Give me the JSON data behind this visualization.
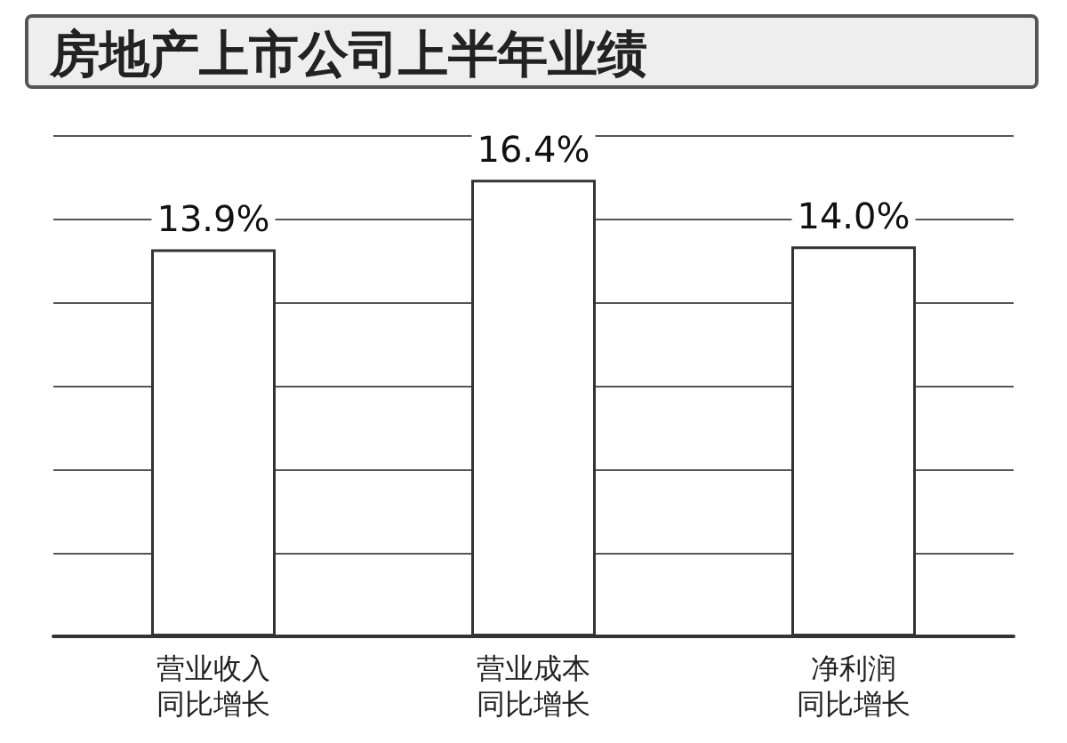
{
  "chart_data": {
    "type": "bar",
    "title": "房地产上市公司上半年业绩",
    "categories": [
      "营业收入同比增长",
      "营业成本同比增长",
      "净利润同比增长"
    ],
    "values": [
      13.9,
      16.4,
      14.0
    ],
    "value_labels": [
      "13.9%",
      "16.4%",
      "14.0%"
    ],
    "color": "#ffffff",
    "grid": true
  }
}
